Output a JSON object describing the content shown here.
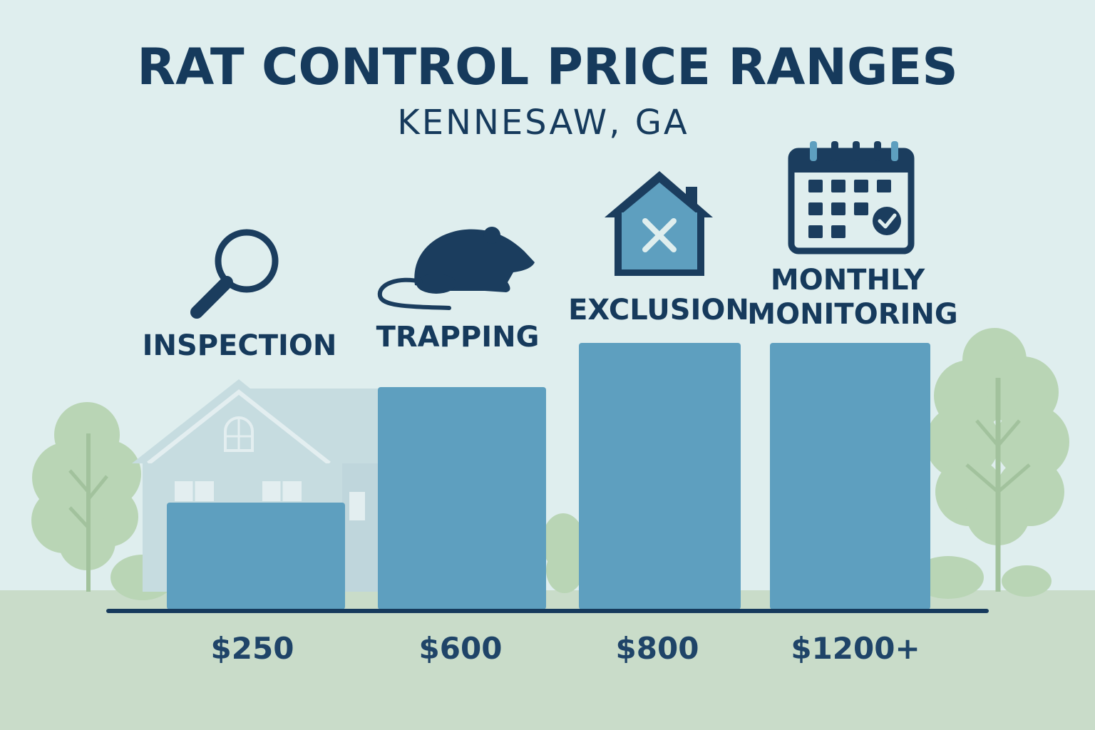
{
  "chart_data": {
    "type": "bar",
    "title": "RAT CONTROL PRICE RANGES",
    "subtitle": "KENNESAW, GA",
    "categories": [
      "INSPECTION",
      "TRAPPING",
      "EXCLUSION",
      "MONTHLY MONITORING"
    ],
    "values": [
      250,
      600,
      800,
      1200
    ],
    "value_labels": [
      "$250",
      "$600",
      "$800",
      "$1200+"
    ],
    "icons": [
      "magnifying-glass-icon",
      "rat-icon",
      "house-x-icon",
      "calendar-check-icon"
    ],
    "ylim": [
      0,
      1200
    ],
    "grid": false,
    "legend": "none",
    "colors": {
      "background": "#dfeeee",
      "bar": "#5e9fbf",
      "text": "#163a5c",
      "icon": "#1b3d5e",
      "ground": "#c9dcc9",
      "trees": "#b7d3b3"
    }
  }
}
